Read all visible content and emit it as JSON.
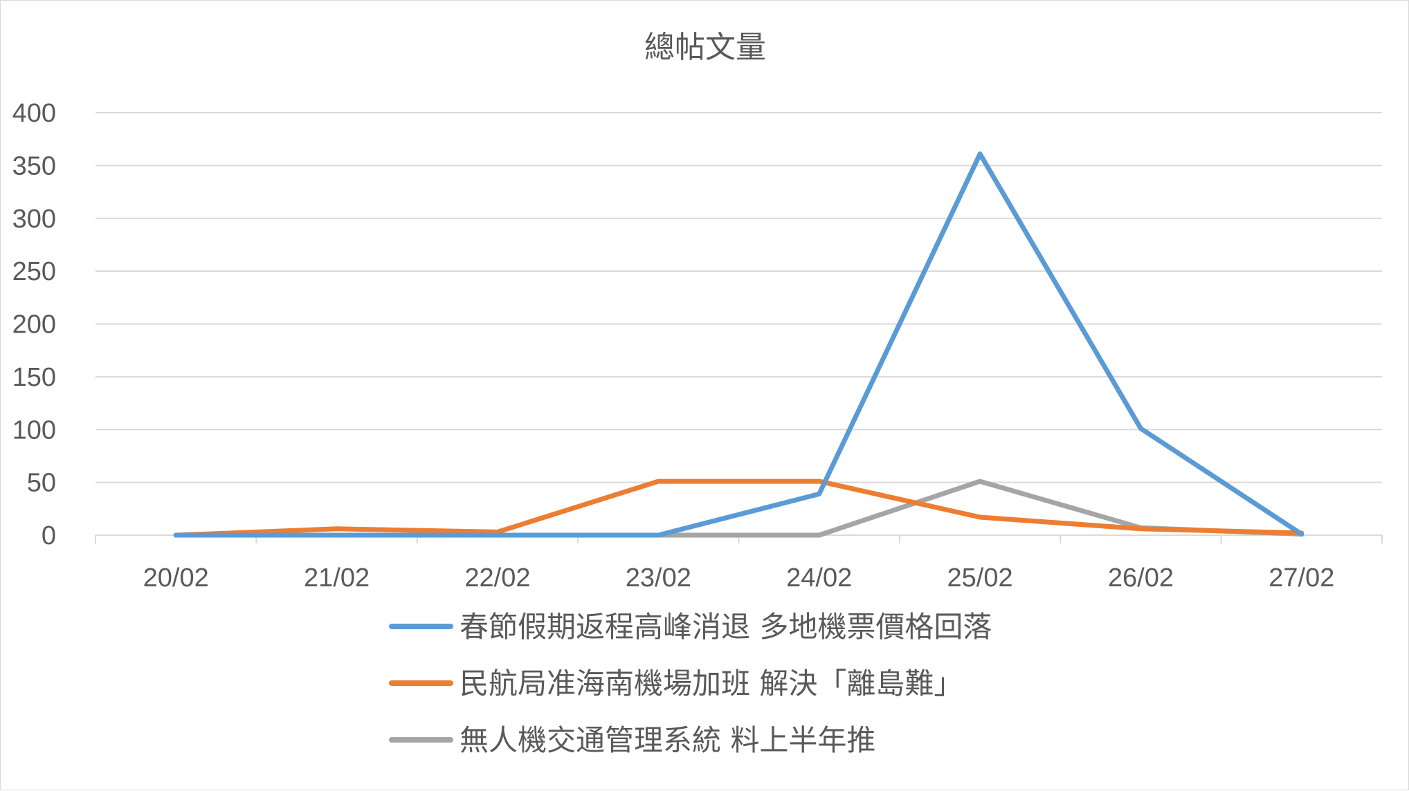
{
  "chart_data": {
    "type": "line",
    "title": "總帖文量",
    "xlabel": "",
    "ylabel": "",
    "categories": [
      "20/02",
      "21/02",
      "22/02",
      "23/02",
      "24/02",
      "25/02",
      "26/02",
      "27/02"
    ],
    "ylim": [
      0,
      400
    ],
    "yticks": [
      "0",
      "50",
      "100",
      "150",
      "200",
      "250",
      "300",
      "350",
      "400"
    ],
    "grid": true,
    "legend_position": "bottom",
    "series": [
      {
        "name": "春節假期返程高峰消退 多地機票價格回落",
        "color": "#5b9bd5",
        "values": [
          0,
          0,
          0,
          0,
          39,
          361,
          101,
          1
        ]
      },
      {
        "name": "民航局准海南機場加班 解決「離島難」",
        "color": "#ed7d31",
        "values": [
          0,
          6,
          3,
          51,
          51,
          17,
          6,
          2
        ]
      },
      {
        "name": "無人機交通管理系統 料上半年推",
        "color": "#a5a5a5",
        "values": [
          0,
          0,
          0,
          0,
          0,
          51,
          7,
          1
        ]
      }
    ]
  }
}
